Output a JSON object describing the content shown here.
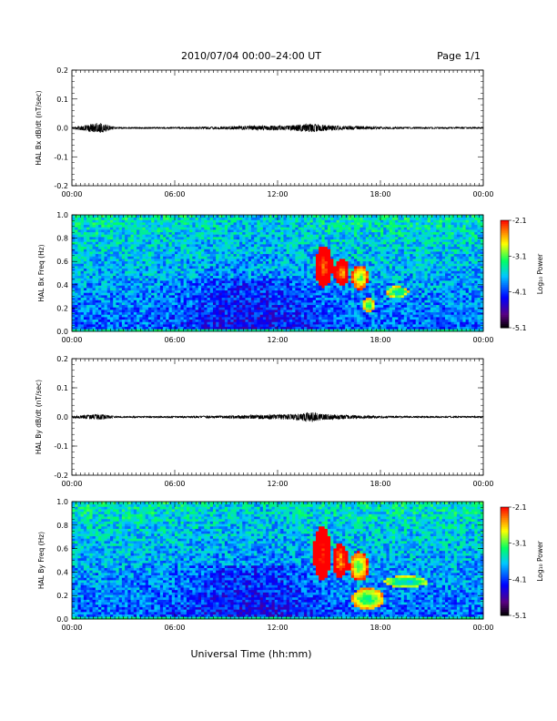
{
  "header": {
    "title": "2010/07/04  00:00–24:00 UT",
    "page": "Page 1/1"
  },
  "footer": {
    "xlabel": "Universal Time (hh:mm)"
  },
  "colors": {
    "trace": "#000000",
    "colorbar": [
      "#000000",
      "#5a0082",
      "#0000ff",
      "#00c8ff",
      "#00ff64",
      "#ffff00",
      "#ff0000"
    ],
    "spectrogram_background": "#1a5bd6"
  },
  "chart_data": [
    {
      "type": "line",
      "panel": "bx-waveform",
      "ylabel": "HAL Bx dB/dt (nT/sec)",
      "ylim": [
        -0.2,
        0.2
      ],
      "yticks": [
        "0.2",
        "0.1",
        "0.0",
        "-0.1",
        "-0.2"
      ],
      "xticks": [
        "00:00",
        "06:00",
        "12:00",
        "18:00",
        "00:00"
      ],
      "x_hours": [
        0,
        1.3,
        1.6,
        1.9,
        2.5,
        4,
        6,
        8,
        9.5,
        10.5,
        11.5,
        12.5,
        13,
        13.5,
        14,
        14.5,
        15,
        15.5,
        16,
        17,
        18,
        20,
        22,
        24
      ],
      "amplitude": [
        0.002,
        0.012,
        0.014,
        0.01,
        0.002,
        0.002,
        0.002,
        0.003,
        0.004,
        0.006,
        0.006,
        0.006,
        0.008,
        0.01,
        0.012,
        0.009,
        0.007,
        0.006,
        0.005,
        0.004,
        0.003,
        0.002,
        0.002,
        0.002
      ]
    },
    {
      "type": "heatmap",
      "panel": "bx-spectrogram",
      "ylabel": "HAL Bx Freq (Hz)",
      "ylim": [
        0,
        1.0
      ],
      "yticks": [
        "1.0",
        "0.8",
        "0.6",
        "0.4",
        "0.2",
        "0.0"
      ],
      "xticks": [
        "00:00",
        "06:00",
        "12:00",
        "18:00",
        "00:00"
      ],
      "colorbar": {
        "label": "Log₁₀ Power",
        "ticks": [
          "-2.1",
          "-3.1",
          "-4.1",
          "-5.1"
        ],
        "range": [
          -5.1,
          -2.1
        ]
      },
      "features": [
        {
          "t_hours": [
            14.3,
            15.1
          ],
          "f_hz": [
            0.42,
            0.7
          ],
          "log_power": -2.3
        },
        {
          "t_hours": [
            15.4,
            16.1
          ],
          "f_hz": [
            0.42,
            0.6
          ],
          "log_power": -2.5
        },
        {
          "t_hours": [
            16.4,
            17.2
          ],
          "f_hz": [
            0.38,
            0.55
          ],
          "log_power": -3.0
        },
        {
          "t_hours": [
            17.0,
            17.6
          ],
          "f_hz": [
            0.18,
            0.28
          ],
          "log_power": -3.3
        },
        {
          "t_hours": [
            18.5,
            19.5
          ],
          "f_hz": [
            0.3,
            0.38
          ],
          "log_power": -3.5
        }
      ]
    },
    {
      "type": "line",
      "panel": "by-waveform",
      "ylabel": "HAL By dB/dt (nT/sec)",
      "ylim": [
        -0.2,
        0.2
      ],
      "yticks": [
        "0.2",
        "0.1",
        "0.0",
        "-0.1",
        "-0.2"
      ],
      "xticks": [
        "00:00",
        "06:00",
        "12:00",
        "18:00",
        "00:00"
      ],
      "x_hours": [
        0,
        1.3,
        1.6,
        1.9,
        2.5,
        4,
        6,
        8,
        9.5,
        10.5,
        11.5,
        12.5,
        13,
        13.5,
        14,
        14.5,
        15,
        15.5,
        16,
        17,
        18,
        20,
        22,
        24
      ],
      "amplitude": [
        0.002,
        0.007,
        0.008,
        0.006,
        0.002,
        0.002,
        0.002,
        0.003,
        0.004,
        0.005,
        0.006,
        0.007,
        0.008,
        0.01,
        0.015,
        0.009,
        0.007,
        0.006,
        0.005,
        0.004,
        0.003,
        0.002,
        0.002,
        0.002
      ]
    },
    {
      "type": "heatmap",
      "panel": "by-spectrogram",
      "ylabel": "HAL By Freq (Hz)",
      "ylim": [
        0,
        1.0
      ],
      "yticks": [
        "1.0",
        "0.8",
        "0.6",
        "0.4",
        "0.2",
        "0.0"
      ],
      "xticks": [
        "00:00",
        "06:00",
        "12:00",
        "18:00",
        "00:00"
      ],
      "colorbar": {
        "label": "Log₁₀ Power",
        "ticks": [
          "-2.1",
          "-3.1",
          "-4.1",
          "-5.1"
        ],
        "range": [
          -5.1,
          -2.1
        ]
      },
      "features": [
        {
          "t_hours": [
            14.2,
            15.0
          ],
          "f_hz": [
            0.38,
            0.75
          ],
          "log_power": -2.15
        },
        {
          "t_hours": [
            15.3,
            16.0
          ],
          "f_hz": [
            0.38,
            0.62
          ],
          "log_power": -2.5
        },
        {
          "t_hours": [
            16.3,
            17.2
          ],
          "f_hz": [
            0.35,
            0.55
          ],
          "log_power": -3.0
        },
        {
          "t_hours": [
            16.5,
            18.0
          ],
          "f_hz": [
            0.1,
            0.25
          ],
          "log_power": -3.3
        },
        {
          "t_hours": [
            18.5,
            20.5
          ],
          "f_hz": [
            0.28,
            0.36
          ],
          "log_power": -3.6
        }
      ]
    }
  ]
}
